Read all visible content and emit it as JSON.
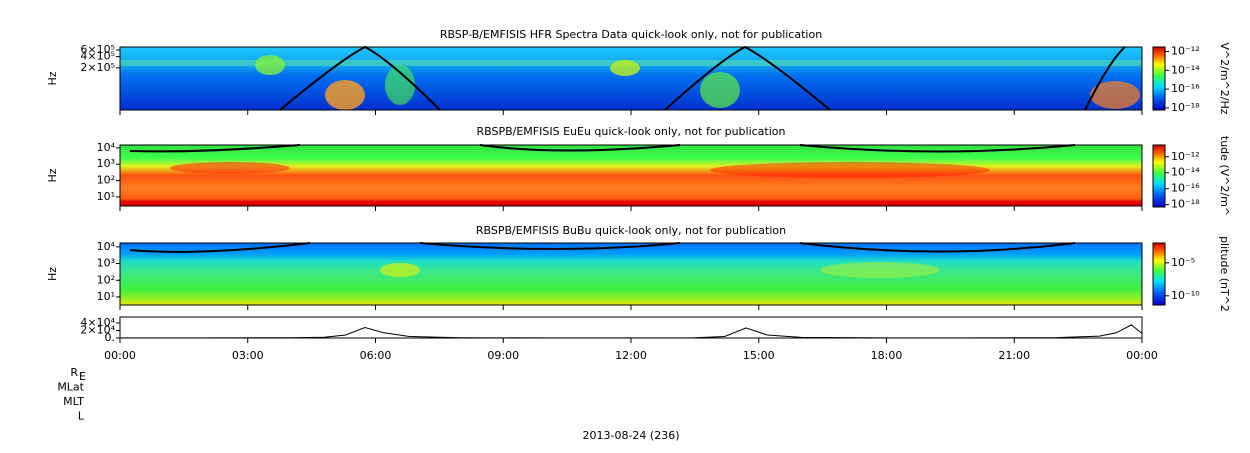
{
  "chart_data": [
    {
      "type": "spectrogram",
      "title": "RBSP-B/EMFISIS  HFR Spectra Data quick-look only, not for publication",
      "ylabel": "Hz",
      "log_y": true,
      "ylim": [
        15000,
        720000
      ],
      "yticks": [
        {
          "value": 600000,
          "label": "6×10⁵"
        },
        {
          "value": 400000,
          "label": "4×10⁵"
        },
        {
          "value": 200000,
          "label": "2×10⁵"
        }
      ],
      "colorbar_label": "V^2/m^2/Hz",
      "clim": [
        6e-19,
        3e-12
      ],
      "cticks": [
        {
          "value": 1e-12,
          "label": "10⁻¹²"
        },
        {
          "value": 1e-14,
          "label": "10⁻¹⁴"
        },
        {
          "value": 1e-16,
          "label": "10⁻¹⁶"
        },
        {
          "value": 1e-18,
          "label": "10⁻¹⁸"
        }
      ]
    },
    {
      "type": "spectrogram",
      "title": "RBSPB/EMFISIS  EuEu quick-look only, not for publication",
      "ylabel": "Hz",
      "log_y": true,
      "ylim": [
        2.8,
        15000
      ],
      "yticks": [
        {
          "value": 10000,
          "label": "10⁴"
        },
        {
          "value": 1000,
          "label": "10³"
        },
        {
          "value": 100,
          "label": "10²"
        },
        {
          "value": 10,
          "label": "10¹"
        }
      ],
      "colorbar_label": "tude (V^2/m^",
      "clim": [
        5e-19,
        3e-11
      ],
      "cticks": [
        {
          "value": 1e-12,
          "label": "10⁻¹²"
        },
        {
          "value": 1e-14,
          "label": "10⁻¹⁴"
        },
        {
          "value": 1e-16,
          "label": "10⁻¹⁶"
        },
        {
          "value": 1e-18,
          "label": "10⁻¹⁸"
        }
      ]
    },
    {
      "type": "spectrogram",
      "title": "RBSPB/EMFISIS  BuBu quick-look only, not for publication",
      "ylabel": "Hz",
      "log_y": true,
      "ylim": [
        3.3,
        17000
      ],
      "yticks": [
        {
          "value": 10000,
          "label": "10⁴"
        },
        {
          "value": 1000,
          "label": "10³"
        },
        {
          "value": 100,
          "label": "10²"
        },
        {
          "value": 10,
          "label": "10¹"
        }
      ],
      "colorbar_label": "plitude (nT^2",
      "clim": [
        4e-12,
        0.01
      ],
      "cticks": [
        {
          "value": 1e-05,
          "label": "10⁻⁵"
        },
        {
          "value": 1e-10,
          "label": "10⁻¹⁰"
        }
      ]
    },
    {
      "type": "line",
      "ylim": [
        0,
        56000
      ],
      "yticks": [
        {
          "value": 40000,
          "label": "4×10⁴"
        },
        {
          "value": 20000,
          "label": "2×10⁴"
        },
        {
          "value": 0,
          "label": "0."
        }
      ],
      "xlim": [
        0,
        24
      ],
      "xticks": [
        {
          "value": 0,
          "label": "00:00"
        },
        {
          "value": 3,
          "label": "03:00"
        },
        {
          "value": 6,
          "label": "06:00"
        },
        {
          "value": 9,
          "label": "09:00"
        },
        {
          "value": 12,
          "label": "12:00"
        },
        {
          "value": 15,
          "label": "15:00"
        },
        {
          "value": 18,
          "label": "18:00"
        },
        {
          "value": 21,
          "label": "21:00"
        },
        {
          "value": 24,
          "label": "00:00"
        }
      ],
      "x": [
        0,
        2,
        4,
        4.8,
        5.3,
        5.75,
        6.2,
        6.8,
        8,
        10,
        12,
        13.5,
        14.2,
        14.7,
        15.2,
        16,
        18,
        20,
        22,
        23,
        23.4,
        23.75,
        24
      ],
      "values": [
        200,
        300,
        800,
        2000,
        8000,
        28000,
        14000,
        4000,
        800,
        300,
        300,
        800,
        4000,
        27000,
        8000,
        1500,
        300,
        300,
        1000,
        5000,
        14000,
        35000,
        12000
      ],
      "color": "#000000"
    }
  ],
  "ephemeris_labels": [
    "R",
    "MLat",
    "MLT",
    "L"
  ],
  "ephemeris_subscript": "E",
  "date": "2013-08-24 (236)"
}
